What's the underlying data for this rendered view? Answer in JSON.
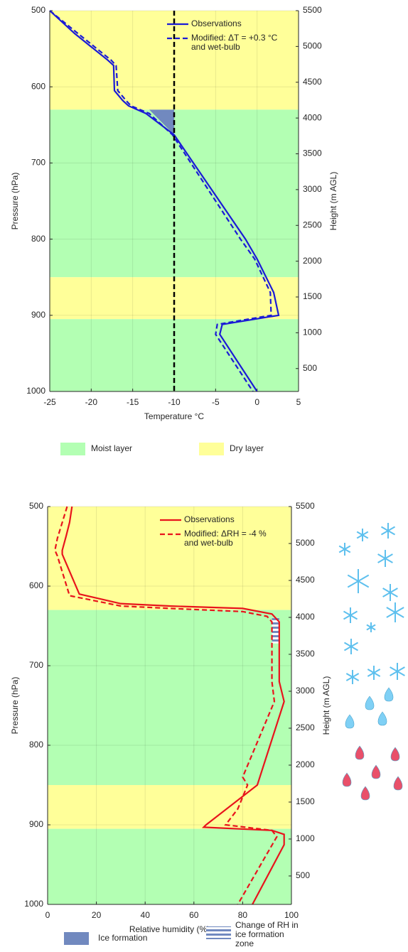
{
  "chart_data": [
    {
      "type": "line",
      "x_label": "Temperature °C",
      "y_label": "Pressure (hPa)",
      "y2_label": "Height (m AGL)",
      "xlim": [
        -25,
        5
      ],
      "xticks": [
        -25,
        -20,
        -15,
        -10,
        -5,
        0,
        5
      ],
      "ylim": [
        500,
        1000
      ],
      "y_inverted": true,
      "yticks": [
        500,
        600,
        700,
        800,
        900,
        1000
      ],
      "y2lim": [
        180,
        5500
      ],
      "y2ticks": [
        500,
        1000,
        1500,
        2000,
        2500,
        3000,
        3500,
        4000,
        4500,
        5000,
        5500
      ],
      "grid": true,
      "legend": "upper right",
      "bands": [
        {
          "ylim": [
            500,
            630
          ],
          "color": "#ffff99"
        },
        {
          "ylim": [
            630,
            850
          ],
          "color": "#b3ffb3"
        },
        {
          "ylim": [
            850,
            905
          ],
          "color": "#ffff99"
        },
        {
          "ylim": [
            905,
            1000
          ],
          "color": "#b3ffb3"
        }
      ],
      "layer_legend": [
        {
          "name": "Moist layer",
          "color": "#b3ffb3"
        },
        {
          "name": "Dry layer",
          "color": "#ffff99"
        }
      ],
      "ice_formation": {
        "name": "Ice formation",
        "color": "#7189bf",
        "x": [
          -13,
          -10,
          -10
        ],
        "values": [
          630,
          630,
          663
        ]
      },
      "reference_line": {
        "x": -10,
        "color": "#000000"
      },
      "series": [
        {
          "name": "Observations",
          "color": "#1a1ad6",
          "dashed": false,
          "x": [
            -25,
            -22,
            -18,
            -17.3,
            -17.2,
            -16.2,
            -15.5,
            -13.4,
            -10,
            -1.4,
            0,
            2,
            2.6,
            -4.2,
            -4.5,
            0
          ],
          "values": [
            500,
            530,
            565,
            572,
            605,
            618,
            625,
            635,
            663,
            800,
            826,
            870,
            900,
            912,
            925,
            1000
          ]
        },
        {
          "name": "Modified: ΔT = +0.3 °C and wet-bulb",
          "color": "#1a1ad6",
          "dashed": true,
          "x": [
            -25,
            -21.6,
            -17.6,
            -17,
            -16.8,
            -15.8,
            -15.2,
            -13,
            -10.2,
            -2,
            -0.3,
            1.6,
            1.7,
            -4.8,
            -5,
            -0.5
          ],
          "values": [
            500,
            530,
            565,
            572,
            605,
            618,
            625,
            635,
            663,
            800,
            826,
            870,
            900,
            912,
            925,
            1000
          ]
        }
      ]
    },
    {
      "type": "line",
      "x_label": "Relative humidity (%)",
      "y_label": "Pressure (hPa)",
      "y2_label": "Height (m AGL)",
      "xlim": [
        0,
        100
      ],
      "xticks": [
        0,
        20,
        40,
        60,
        80,
        100
      ],
      "ylim": [
        500,
        1000
      ],
      "y_inverted": true,
      "yticks": [
        500,
        600,
        700,
        800,
        900,
        1000
      ],
      "y2lim": [
        115,
        5500
      ],
      "y2ticks": [
        500,
        1000,
        1500,
        2000,
        2500,
        3000,
        3500,
        4000,
        4500,
        5000,
        5500
      ],
      "grid": true,
      "legend": "upper right",
      "bands": [
        {
          "ylim": [
            500,
            630
          ],
          "color": "#ffff99"
        },
        {
          "ylim": [
            630,
            850
          ],
          "color": "#b3ffb3"
        },
        {
          "ylim": [
            850,
            905
          ],
          "color": "#ffff99"
        },
        {
          "ylim": [
            905,
            1000
          ],
          "color": "#b3ffb3"
        }
      ],
      "ice_change_zone": {
        "name": "Change of RH in ice formation zone",
        "color": "#7189bf",
        "xlim": [
          92,
          95
        ],
        "ylim": [
          640,
          672
        ]
      },
      "series": [
        {
          "name": "Observations",
          "color": "#e8141c",
          "dashed": false,
          "x": [
            10,
            9,
            7.6,
            6,
            6,
            13,
            30,
            50,
            80,
            92,
            95,
            95,
            97,
            86,
            65,
            64,
            92,
            97,
            97,
            84
          ],
          "values": [
            500,
            520,
            537,
            555,
            560,
            610,
            622,
            625,
            628,
            635,
            645,
            720,
            745,
            850,
            900,
            903,
            907,
            912,
            925,
            1000
          ]
        },
        {
          "name": "Modified: ΔRH = -4 % and wet-bulb",
          "color": "#e8141c",
          "dashed": true,
          "x": [
            8,
            6,
            4,
            3,
            4,
            9,
            30,
            50,
            80,
            90,
            92,
            92,
            93,
            80,
            82,
            78,
            73,
            92,
            94,
            78
          ],
          "values": [
            500,
            520,
            540,
            555,
            562,
            612,
            625,
            628,
            632,
            638,
            645,
            720,
            745,
            840,
            850,
            880,
            900,
            907,
            915,
            1000
          ]
        }
      ]
    }
  ]
}
